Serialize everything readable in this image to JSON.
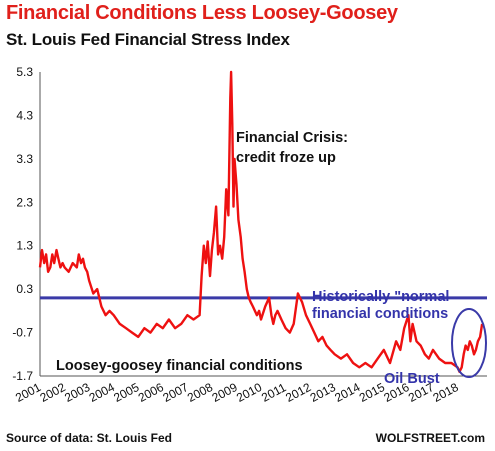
{
  "header": {
    "title": "Financial Conditions Less Loosey-Goosey",
    "subtitle": "St. Louis Fed Financial Stress Index"
  },
  "footer": {
    "source": "Source of data: St. Louis Fed",
    "credit": "WOLFSTREET.com"
  },
  "colors": {
    "line": "#ee1111",
    "normal_line": "#3a3aa8",
    "title": "#e0201b",
    "annotation_blue": "#3333aa"
  },
  "chart_data": {
    "type": "line",
    "title": "Financial Conditions Less Loosey-Goosey",
    "subtitle": "St. Louis Fed Financial Stress Index",
    "xlabel": "",
    "ylabel": "",
    "xlim": [
      2001,
      2019.2
    ],
    "ylim": [
      -1.7,
      5.3
    ],
    "x_ticks": [
      "2001",
      "2002",
      "2003",
      "2004",
      "2005",
      "2006",
      "2007",
      "2008",
      "2009",
      "2010",
      "2011",
      "2012",
      "2013",
      "2014",
      "2015",
      "2016",
      "2017",
      "2018"
    ],
    "y_ticks": [
      "5.3",
      "4.3",
      "3.3",
      "2.3",
      "1.3",
      "0.3",
      "-0.7",
      "-1.7"
    ],
    "grid": false,
    "series": [
      {
        "x": [
          2001.0,
          2001.08,
          2001.17,
          2001.25,
          2001.33,
          2001.42,
          2001.5,
          2001.58,
          2001.67,
          2001.75,
          2001.83,
          2001.92,
          2002.0,
          2002.17,
          2002.33,
          2002.5,
          2002.58,
          2002.67,
          2002.75,
          2002.83,
          2002.92,
          2003.0,
          2003.17,
          2003.33,
          2003.5,
          2003.67,
          2003.83,
          2004.0,
          2004.25,
          2004.5,
          2004.75,
          2005.0,
          2005.25,
          2005.5,
          2005.75,
          2006.0,
          2006.25,
          2006.5,
          2006.75,
          2007.0,
          2007.25,
          2007.5,
          2007.58,
          2007.67,
          2007.75,
          2007.83,
          2007.92,
          2008.0,
          2008.08,
          2008.17,
          2008.25,
          2008.33,
          2008.42,
          2008.5,
          2008.58,
          2008.67,
          2008.7,
          2008.75,
          2008.78,
          2008.83,
          2008.88,
          2008.92,
          2009.0,
          2009.08,
          2009.17,
          2009.25,
          2009.33,
          2009.42,
          2009.5,
          2009.58,
          2009.67,
          2009.75,
          2009.83,
          2009.92,
          2010.0,
          2010.17,
          2010.33,
          2010.42,
          2010.5,
          2010.58,
          2010.67,
          2010.83,
          2011.0,
          2011.17,
          2011.33,
          2011.5,
          2011.67,
          2011.83,
          2012.0,
          2012.17,
          2012.33,
          2012.5,
          2012.67,
          2012.83,
          2013.0,
          2013.25,
          2013.5,
          2013.75,
          2014.0,
          2014.25,
          2014.5,
          2014.75,
          2015.0,
          2015.25,
          2015.5,
          2015.67,
          2015.83,
          2016.0,
          2016.08,
          2016.17,
          2016.33,
          2016.5,
          2016.67,
          2016.83,
          2017.0,
          2017.25,
          2017.5,
          2017.75,
          2018.0,
          2018.08,
          2018.17,
          2018.25,
          2018.33,
          2018.42,
          2018.5,
          2018.58,
          2018.67,
          2018.75,
          2018.83,
          2018.92,
          2019.0
        ],
        "y": [
          0.8,
          1.2,
          0.9,
          1.1,
          0.7,
          0.8,
          1.1,
          0.9,
          1.2,
          1.0,
          0.8,
          0.9,
          0.8,
          0.7,
          0.9,
          0.8,
          1.1,
          0.9,
          1.0,
          0.8,
          0.7,
          0.5,
          0.2,
          0.3,
          -0.1,
          -0.3,
          -0.2,
          -0.3,
          -0.5,
          -0.6,
          -0.7,
          -0.8,
          -0.6,
          -0.7,
          -0.5,
          -0.6,
          -0.4,
          -0.6,
          -0.5,
          -0.3,
          -0.4,
          -0.3,
          0.6,
          1.3,
          0.9,
          1.4,
          0.6,
          1.2,
          1.6,
          2.2,
          1.1,
          1.3,
          1.0,
          1.5,
          2.6,
          2.0,
          3.0,
          4.7,
          5.3,
          4.1,
          2.2,
          3.3,
          2.7,
          1.9,
          1.5,
          1.0,
          0.7,
          0.3,
          0.1,
          0.0,
          -0.1,
          -0.2,
          -0.3,
          -0.2,
          -0.4,
          -0.1,
          0.1,
          -0.3,
          -0.5,
          -0.3,
          -0.2,
          -0.4,
          -0.6,
          -0.7,
          -0.5,
          0.2,
          0.0,
          -0.3,
          -0.5,
          -0.7,
          -0.9,
          -0.8,
          -1.0,
          -1.1,
          -1.2,
          -1.3,
          -1.2,
          -1.4,
          -1.5,
          -1.4,
          -1.5,
          -1.3,
          -1.1,
          -1.4,
          -0.9,
          -1.1,
          -0.6,
          -0.3,
          -0.9,
          -0.5,
          -0.9,
          -1.0,
          -1.2,
          -1.3,
          -1.1,
          -1.3,
          -1.4,
          -1.4,
          -1.5,
          -1.6,
          -1.5,
          -1.2,
          -1.0,
          -1.1,
          -0.9,
          -1.0,
          -1.2,
          -1.1,
          -0.9,
          -0.8,
          -0.5
        ]
      }
    ],
    "reference_line": {
      "y": 0.1
    },
    "annotations": [
      {
        "lines": [
          "Financial Crisis:",
          "credit froze up"
        ],
        "color": "black"
      },
      {
        "lines": [
          "Historically \"normal",
          "financial conditions"
        ],
        "color": "blue"
      },
      {
        "lines": [
          "Loosey-goosey financial conditions"
        ],
        "color": "black"
      },
      {
        "lines": [
          "Oil Bust"
        ],
        "color": "blue"
      }
    ]
  }
}
